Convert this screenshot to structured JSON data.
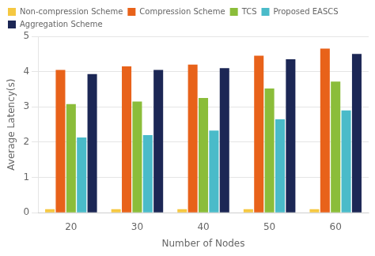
{
  "chart_data": {
    "type": "bar",
    "xlabel": "Number of Nodes",
    "ylabel": "Average Latency(s)",
    "categories": [
      20,
      30,
      40,
      50,
      60
    ],
    "series": [
      {
        "name": "Non-compression Scheme",
        "color": "#F5C842",
        "values": [
          0.1,
          0.1,
          0.1,
          0.1,
          0.1
        ]
      },
      {
        "name": "Compression Scheme",
        "color": "#E8621A",
        "values": [
          4.05,
          4.15,
          4.2,
          4.45,
          4.65
        ]
      },
      {
        "name": "TCS",
        "color": "#8BBD3A",
        "values": [
          3.08,
          3.15,
          3.25,
          3.52,
          3.72
        ]
      },
      {
        "name": "Proposed EASCS",
        "color": "#4ABBC9",
        "values": [
          2.13,
          2.2,
          2.33,
          2.65,
          2.9
        ]
      },
      {
        "name": "Aggregation Scheme",
        "color": "#1C2755",
        "values": [
          3.93,
          4.05,
          4.1,
          4.35,
          4.5
        ]
      }
    ],
    "ylim": [
      0,
      5
    ],
    "yticks": [
      0,
      1,
      2,
      3,
      4,
      5
    ],
    "grid": "y",
    "legend": "upper left"
  }
}
